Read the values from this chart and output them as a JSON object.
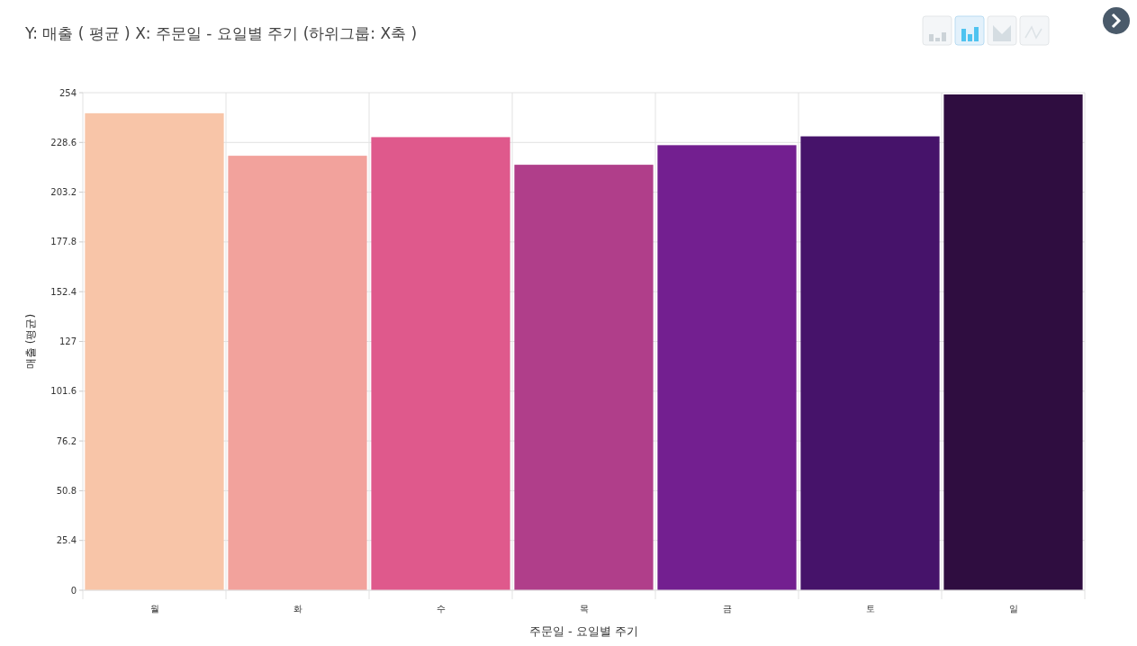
{
  "chart_data": {
    "type": "bar",
    "title": "Y: 매출 ( 평균 ) X: 주문일 - 요일별 주기 (하위그룹: X축 )",
    "xlabel": "주문일 - 요일별 주기",
    "ylabel": "매출 (평균)",
    "categories": [
      "월",
      "화",
      "수",
      "목",
      "금",
      "토",
      "일"
    ],
    "values": [
      243.5,
      221.8,
      231.3,
      217.2,
      227.2,
      231.7,
      253.1
    ],
    "colors": [
      "#f8c5a8",
      "#f2a29c",
      "#df598c",
      "#b03e8a",
      "#731f90",
      "#46136a",
      "#2f0d40"
    ],
    "ylim": [
      0,
      254
    ],
    "yticks": [
      0,
      25.4,
      50.8,
      76.2,
      101.6,
      127,
      152.4,
      177.8,
      203.2,
      228.6,
      254
    ],
    "grid": true
  }
}
